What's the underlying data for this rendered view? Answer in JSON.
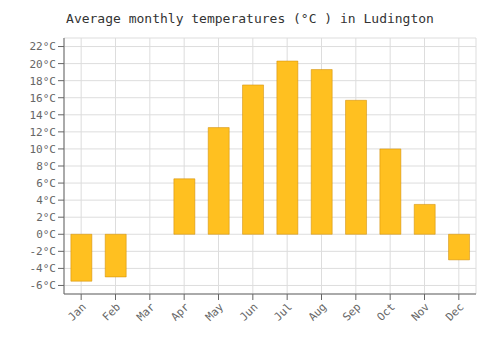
{
  "chart_data": {
    "type": "bar",
    "title": "Average monthly temperatures (°C ) in Ludington",
    "categories": [
      "Jan",
      "Feb",
      "Mar",
      "Apr",
      "May",
      "Jun",
      "Jul",
      "Aug",
      "Sep",
      "Oct",
      "Nov",
      "Dec"
    ],
    "values": [
      -5.5,
      -5.0,
      0.0,
      6.5,
      12.5,
      17.5,
      20.3,
      19.3,
      15.7,
      10.0,
      3.5,
      -3.0
    ],
    "color": "#FFC020",
    "ylim": [
      -7,
      23
    ],
    "yticks": [
      {
        "value": -6,
        "label": "-6°C"
      },
      {
        "value": -4,
        "label": "-4°C"
      },
      {
        "value": -2,
        "label": "-2°C"
      },
      {
        "value": 0,
        "label": "0°C"
      },
      {
        "value": 2,
        "label": "2°C"
      },
      {
        "value": 4,
        "label": "4°C"
      },
      {
        "value": 6,
        "label": "6°C"
      },
      {
        "value": 8,
        "label": "8°C"
      },
      {
        "value": 10,
        "label": "10°C"
      },
      {
        "value": 12,
        "label": "12°C"
      },
      {
        "value": 14,
        "label": "14°C"
      },
      {
        "value": 16,
        "label": "16°C"
      },
      {
        "value": 18,
        "label": "18°C"
      },
      {
        "value": 20,
        "label": "20°C"
      },
      {
        "value": 22,
        "label": "22°C"
      }
    ],
    "grid": true
  }
}
